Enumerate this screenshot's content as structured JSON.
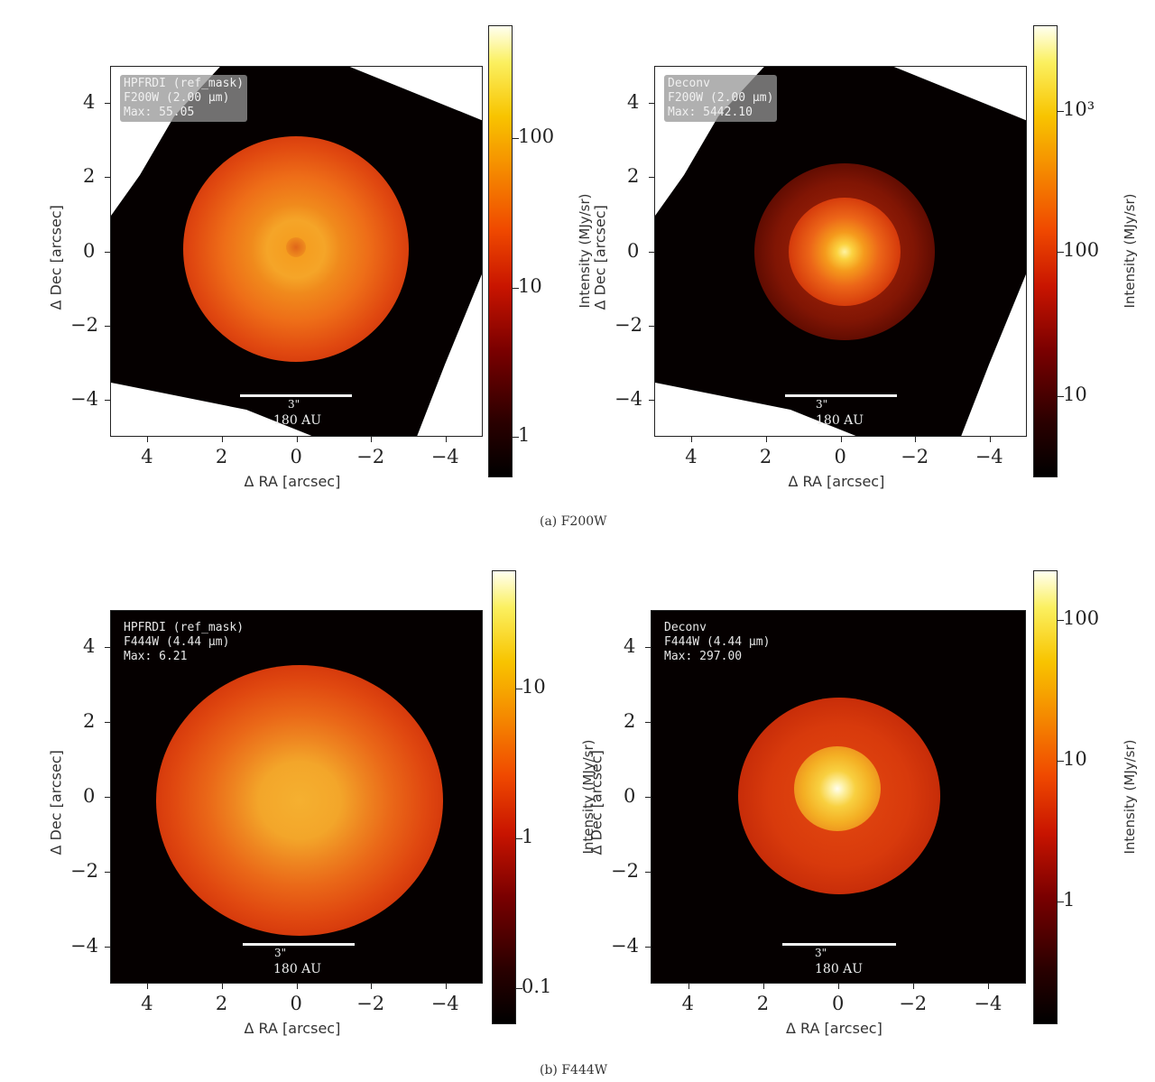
{
  "captions": {
    "a": "(a) F200W",
    "b": "(b) F444W"
  },
  "axes": {
    "xlabel": "Δ RA [arcsec]",
    "ylabel": "Δ Dec [arcsec]"
  },
  "ticks": {
    "y": [
      "4",
      "2",
      "0",
      "−2",
      "−4"
    ],
    "x": [
      "4",
      "2",
      "0",
      "−2",
      "−4"
    ]
  },
  "scalebar": {
    "top": "3\"",
    "bottom": "180 AU"
  },
  "colorbar_label": "Intensity (MJy/sr)",
  "panels": [
    {
      "id": "f200w-hpfrdi",
      "legend": [
        "HPFRDI (ref_mask)",
        "F200W (2.00 μm)",
        "Max: 55.05"
      ],
      "cbar_ticks": [
        "100",
        "10",
        "1"
      ],
      "cbar_tick_pos": [
        0.25,
        0.58,
        0.91
      ],
      "cbar_range": [
        0.55,
        500
      ]
    },
    {
      "id": "f200w-deconv",
      "legend": [
        "Deconv",
        "F200W (2.00 μm)",
        "Max: 5442.10"
      ],
      "cbar_ticks": [
        "10³",
        "100",
        "10"
      ],
      "cbar_tick_pos": [
        0.19,
        0.5,
        0.82
      ],
      "cbar_range": [
        3,
        5500
      ]
    },
    {
      "id": "f444w-hpfrdi",
      "legend": [
        "HPFRDI (ref_mask)",
        "F444W (4.44 μm)",
        "Max: 6.21"
      ],
      "cbar_ticks": [
        "10",
        "1",
        "0.1"
      ],
      "cbar_tick_pos": [
        0.26,
        0.59,
        0.92
      ],
      "cbar_range": [
        0.06,
        40
      ]
    },
    {
      "id": "f444w-deconv",
      "legend": [
        "Deconv",
        "F444W (4.44 μm)",
        "Max: 297.00"
      ],
      "cbar_ticks": [
        "100",
        "10",
        "1"
      ],
      "cbar_tick_pos": [
        0.11,
        0.42,
        0.73
      ],
      "cbar_range": [
        0.2,
        200
      ]
    }
  ],
  "colors": {
    "background": "#050000",
    "frame": "#222222",
    "scalebar": "#f2f2f2"
  }
}
